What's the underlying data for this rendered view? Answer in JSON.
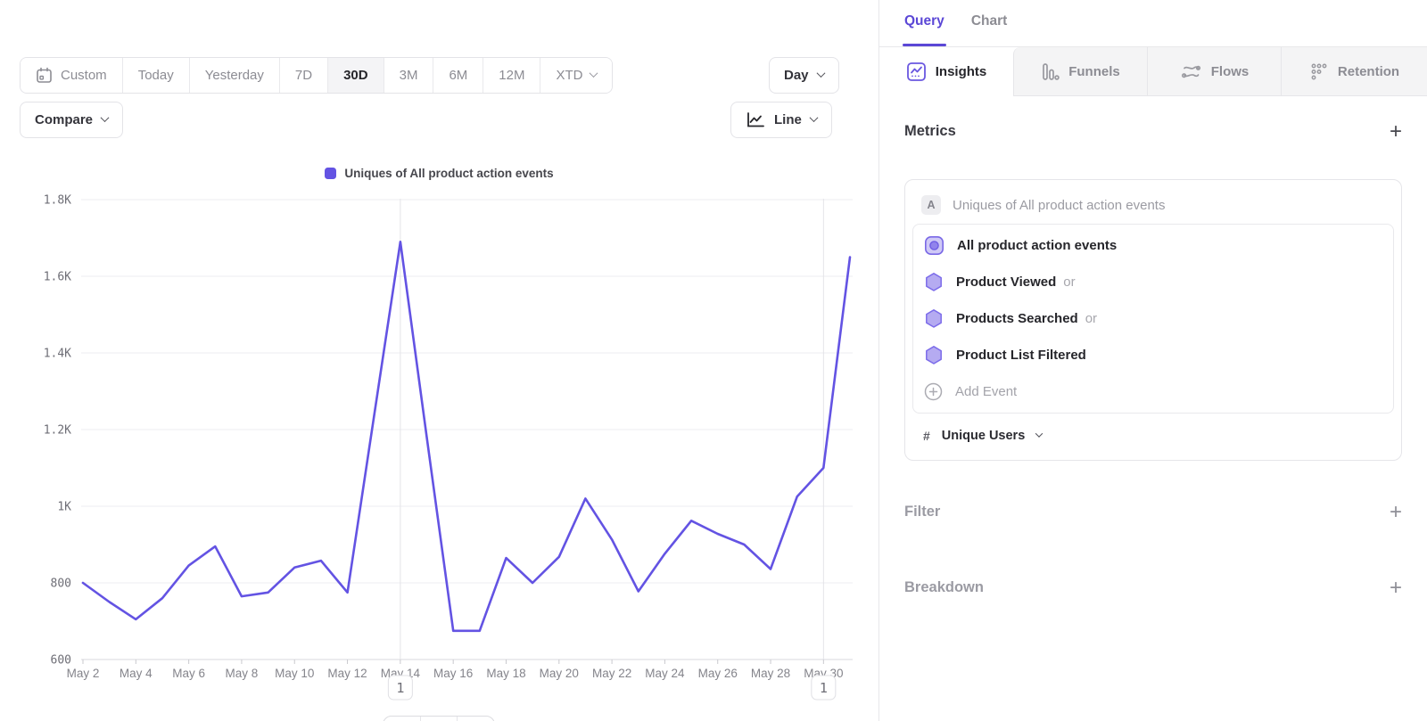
{
  "toolbar": {
    "date_ranges": [
      {
        "label": "Custom",
        "icon": "calendar-icon"
      },
      {
        "label": "Today"
      },
      {
        "label": "Yesterday"
      },
      {
        "label": "7D"
      },
      {
        "label": "30D",
        "selected": true
      },
      {
        "label": "3M"
      },
      {
        "label": "6M"
      },
      {
        "label": "12M"
      },
      {
        "label": "XTD",
        "chevron": true
      }
    ],
    "granularity": "Day",
    "compare_label": "Compare",
    "chart_type": "Line"
  },
  "legend": {
    "label": "Uniques of All product action events"
  },
  "chart_data": {
    "type": "line",
    "title": "",
    "legend_position": "top-center",
    "grid": "horizontal",
    "line_color": "#6353e3",
    "ylim": [
      600,
      1800
    ],
    "yticks": [
      {
        "v": 1800,
        "label": "1.8K"
      },
      {
        "v": 1600,
        "label": "1.6K"
      },
      {
        "v": 1400,
        "label": "1.4K"
      },
      {
        "v": 1200,
        "label": "1.2K"
      },
      {
        "v": 1000,
        "label": "1K"
      },
      {
        "v": 800,
        "label": "800"
      },
      {
        "v": 600,
        "label": "600"
      }
    ],
    "x": [
      "May 2",
      "May 3",
      "May 4",
      "May 5",
      "May 6",
      "May 7",
      "May 8",
      "May 9",
      "May 10",
      "May 11",
      "May 12",
      "May 13",
      "May 14",
      "May 15",
      "May 16",
      "May 17",
      "May 18",
      "May 19",
      "May 20",
      "May 21",
      "May 22",
      "May 23",
      "May 24",
      "May 25",
      "May 26",
      "May 27",
      "May 28",
      "May 29",
      "May 30",
      "May 31"
    ],
    "xtick_every": 2,
    "series": [
      {
        "name": "Uniques of All product action events",
        "values": [
          800,
          750,
          705,
          760,
          845,
          895,
          765,
          775,
          840,
          858,
          775,
          1232,
          1690,
          1180,
          675,
          675,
          865,
          800,
          868,
          1020,
          913,
          778,
          876,
          962,
          928,
          900,
          836,
          1025,
          1100,
          1650
        ]
      }
    ],
    "annotations": [
      {
        "x": "May 14",
        "label": "1"
      },
      {
        "x": "May 30",
        "label": "1"
      }
    ]
  },
  "panel": {
    "tabs": [
      {
        "label": "Query",
        "active": true
      },
      {
        "label": "Chart",
        "active": false
      }
    ],
    "report_tabs": [
      {
        "label": "Insights",
        "icon": "insights-icon",
        "active": true
      },
      {
        "label": "Funnels",
        "icon": "funnels-icon",
        "active": false
      },
      {
        "label": "Flows",
        "icon": "flows-icon",
        "active": false
      },
      {
        "label": "Retention",
        "icon": "retention-icon",
        "active": false
      }
    ],
    "metrics": {
      "title": "Metrics",
      "add_symbol": "+",
      "series_badge": "A",
      "series_label": "Uniques of All product action events",
      "events": [
        {
          "label": "All product action events",
          "icon": "all-events-icon",
          "conjunction": ""
        },
        {
          "label": "Product Viewed",
          "icon": "event-hexagon-icon",
          "conjunction": "or"
        },
        {
          "label": "Products Searched",
          "icon": "event-hexagon-icon",
          "conjunction": "or"
        },
        {
          "label": "Product List Filtered",
          "icon": "event-hexagon-icon",
          "conjunction": ""
        }
      ],
      "add_event_label": "Add Event",
      "measure": {
        "symbol": "#",
        "label": "Unique Users"
      }
    },
    "filter": {
      "title": "Filter",
      "add_symbol": "+"
    },
    "breakdown": {
      "title": "Breakdown",
      "add_symbol": "+"
    }
  },
  "colors": {
    "accent_purple": "#5b47d6",
    "line_purple": "#6353e3",
    "hexagon_fill": "#b5abf1",
    "hexagon_stroke": "#7c6cea",
    "grid": "#ececf0",
    "axis": "#d8d8dc",
    "text_dark": "#2f2f35",
    "text_gray": "#8c8c93"
  }
}
